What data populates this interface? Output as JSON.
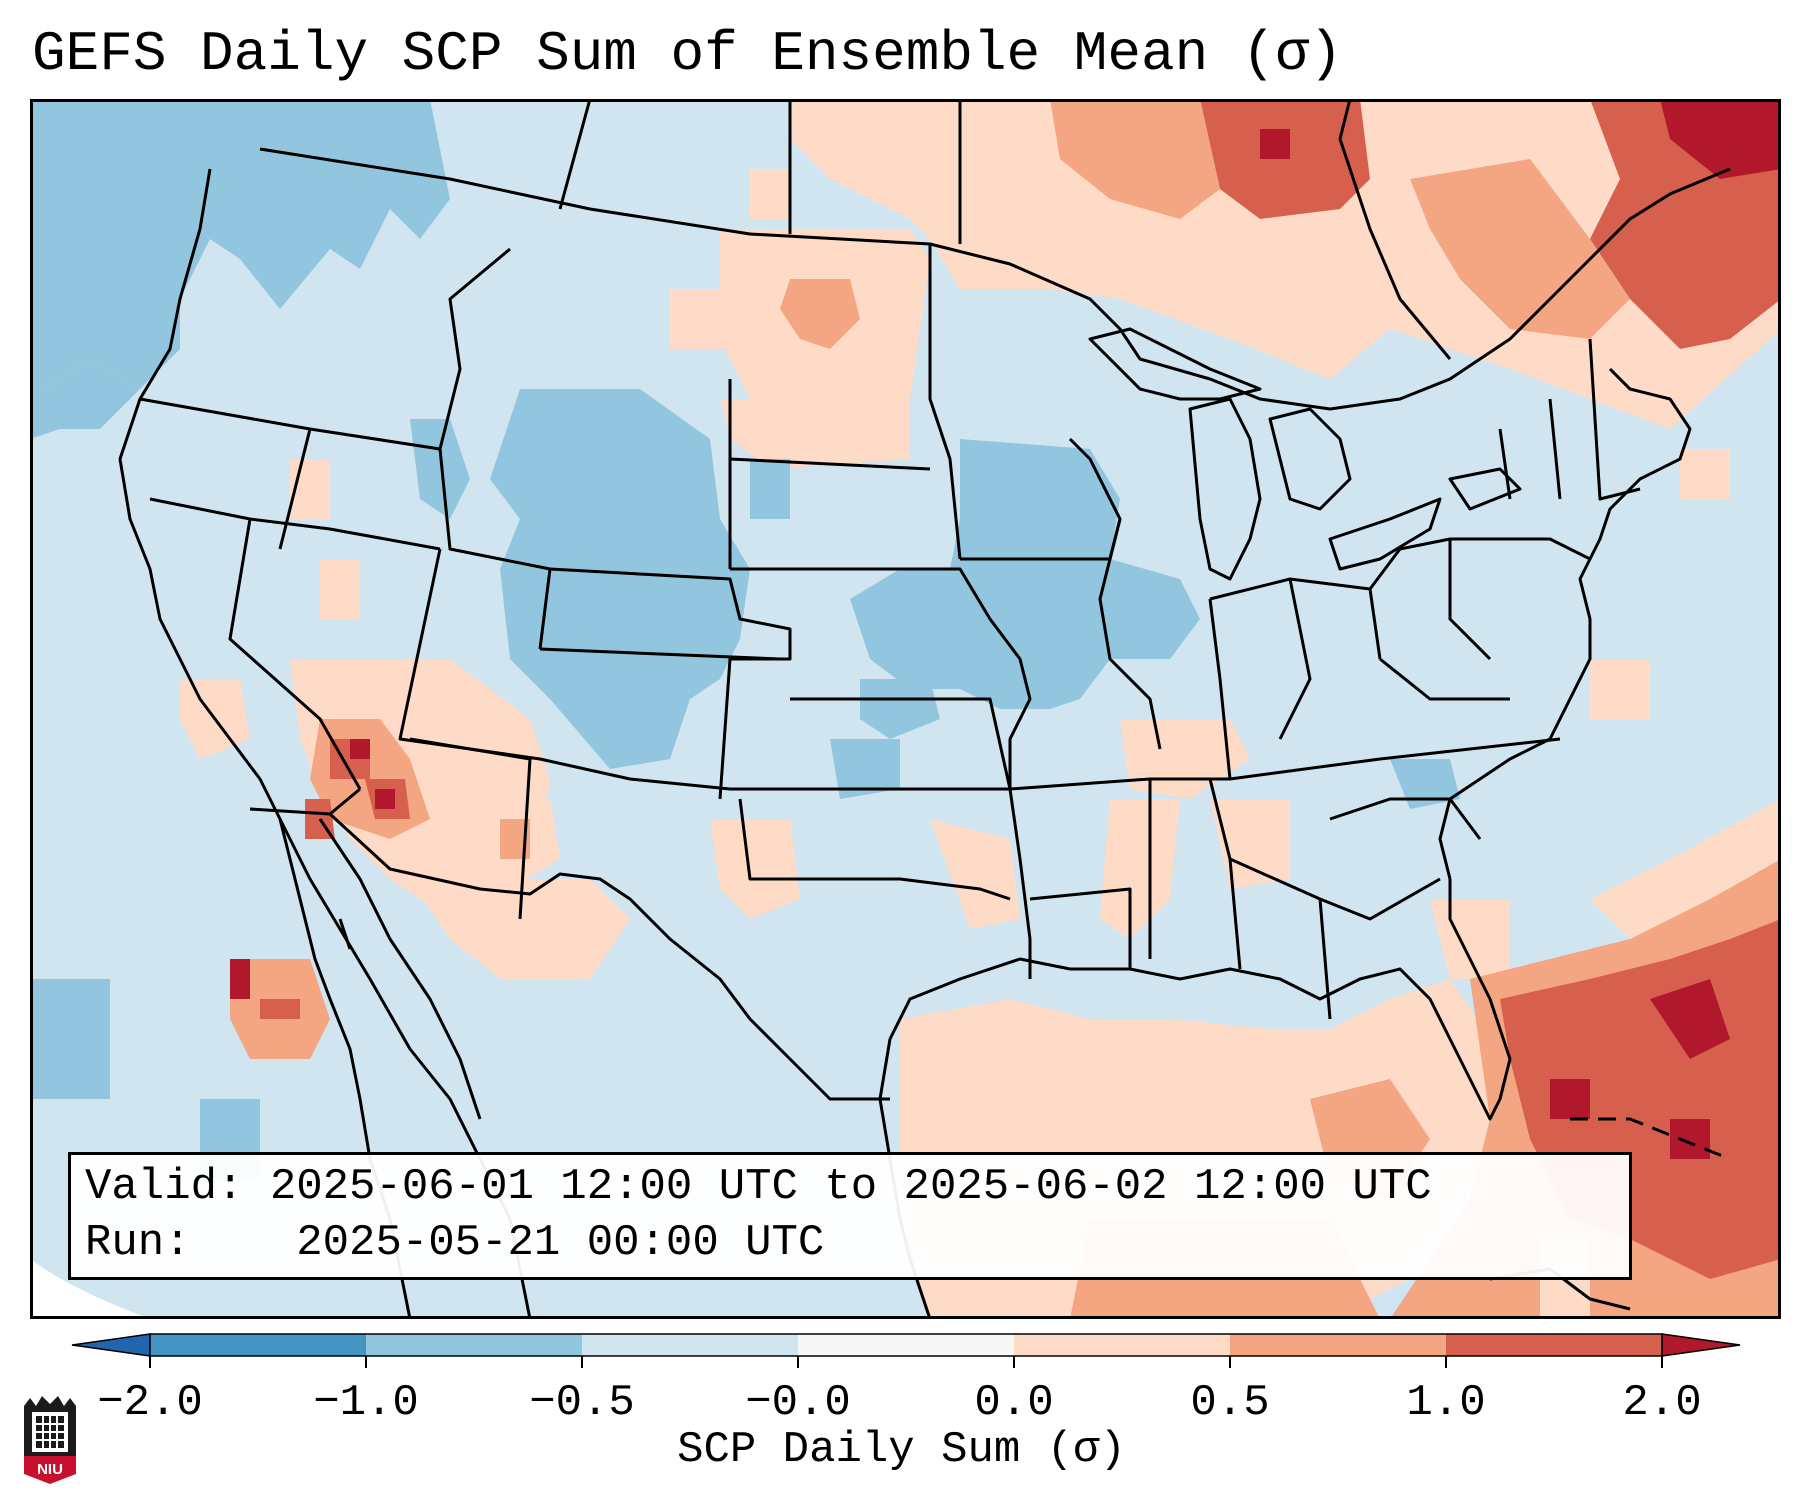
{
  "title": "GEFS Daily SCP Sum of Ensemble Mean (σ)",
  "info_box": {
    "valid_label": "Valid:",
    "valid_value": "2025-06-01 12:00 UTC to 2025-06-02 12:00 UTC",
    "run_label": "Run:",
    "run_value": "2025-05-21 00:00 UTC"
  },
  "colorbar": {
    "label": "SCP Daily Sum (σ)",
    "ticks": [
      "−2.0",
      "−1.0",
      "−0.5",
      "−0.0",
      "0.0",
      "0.5",
      "1.0",
      "2.0"
    ],
    "under_color": "#2166ac",
    "over_color": "#b2182b",
    "colors": [
      "#4393c3",
      "#92c5de",
      "#d1e5f0",
      "#f7f7f7",
      "#fddbc7",
      "#f4a582",
      "#d6604d"
    ]
  },
  "map": {
    "background_color": "#d1e5f0",
    "state_line_color": "#000000",
    "anomaly_regions": [
      {
        "region": "Pacific Northwest coast",
        "category": "-1.0 to -0.5"
      },
      {
        "region": "Wyoming / Colorado",
        "category": "-1.0 to -0.5"
      },
      {
        "region": "Iowa / Missouri",
        "category": "-1.0 to -0.5"
      },
      {
        "region": "Lower Colorado River / Arizona",
        "category": "1.0 to 2.0"
      },
      {
        "region": "Gulf of Mexico",
        "category": "0.0 to 0.5"
      },
      {
        "region": "Western Atlantic / Bahamas",
        "category": "1.0 to 2.0"
      },
      {
        "region": "Quebec / Maine",
        "category": "1.0 to 2.0"
      }
    ]
  },
  "logo": {
    "text": "NIU"
  }
}
